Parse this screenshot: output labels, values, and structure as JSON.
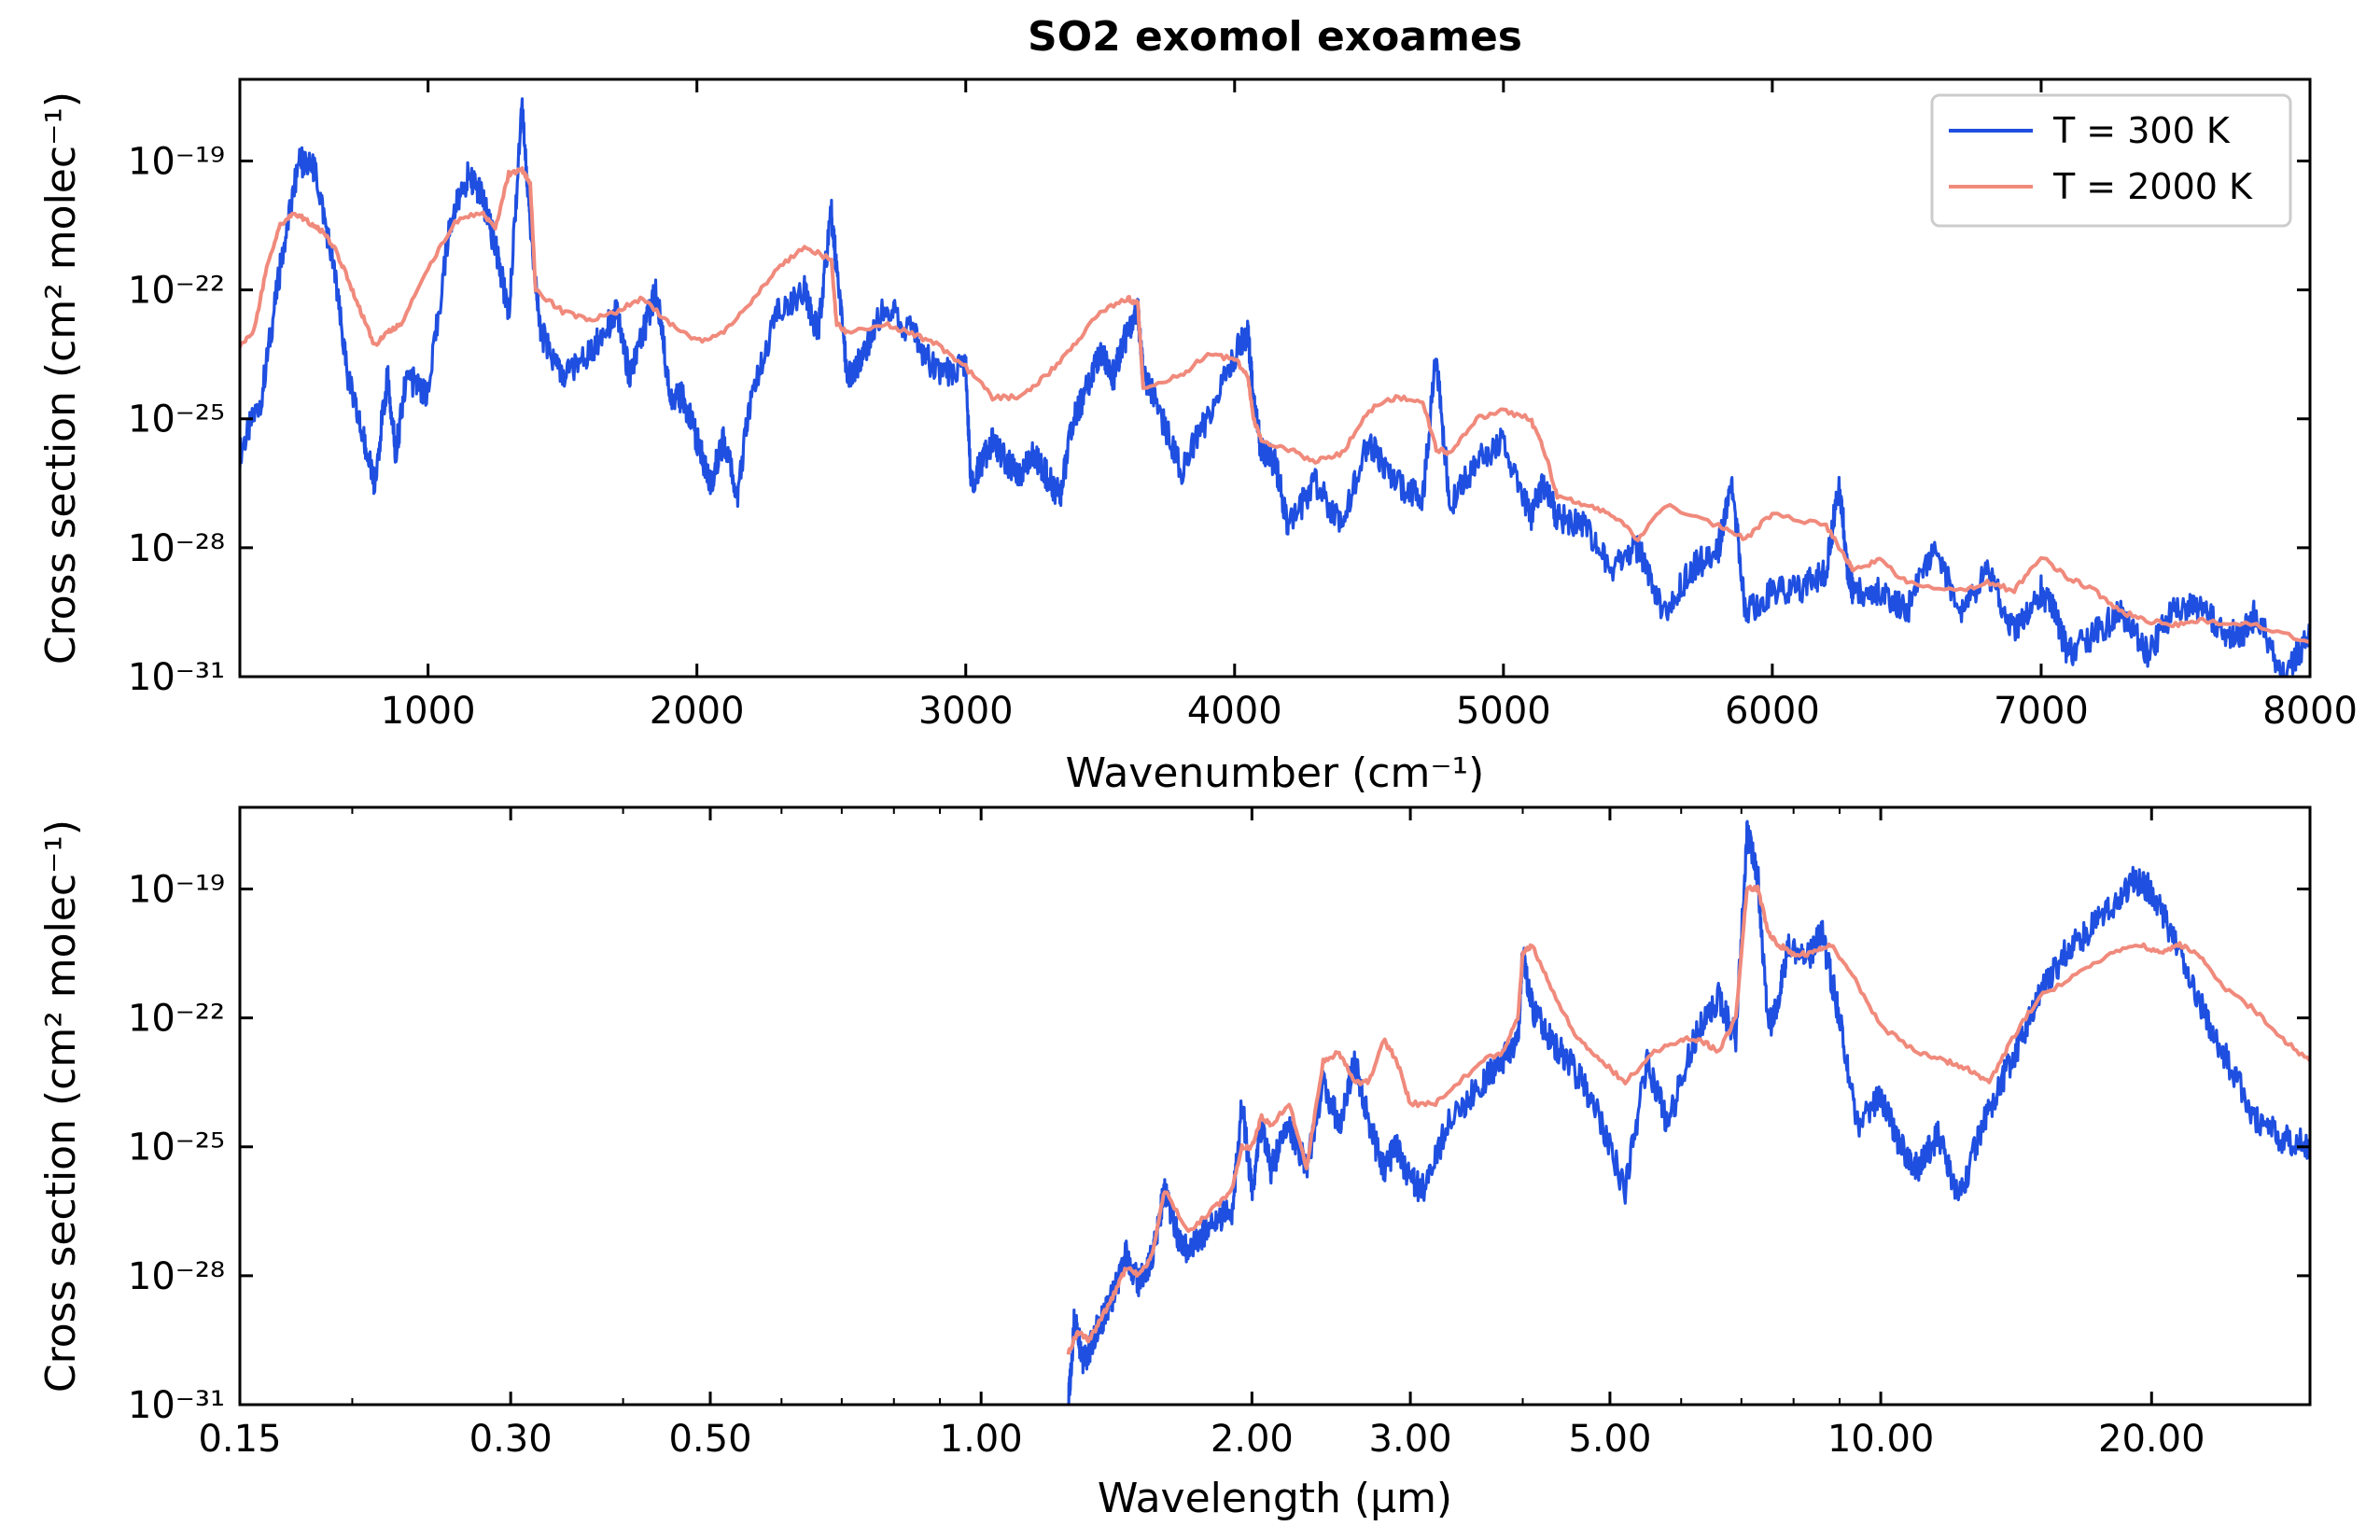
{
  "figure": {
    "title": "SO2 exomol exoames"
  },
  "legend": {
    "entries": [
      "T = 300 K",
      "T = 2000 K"
    ]
  },
  "colors": {
    "t300": "#1f4fe0",
    "t2000": "#f08a7c",
    "axes": "#000000",
    "background": "#ffffff"
  },
  "chart_data": [
    {
      "type": "line",
      "panel": "top",
      "title": "SO2 exomol exoames",
      "xlabel": "Wavenumber (cm⁻¹)",
      "ylabel": "Cross section (cm² molec⁻¹)",
      "xlim": [
        300,
        8000
      ],
      "ylim": [
        -31,
        -17.1
      ],
      "yscale": "log10",
      "x_ticks": [
        1000,
        2000,
        3000,
        4000,
        5000,
        6000,
        7000,
        8000
      ],
      "x_tick_labels": [
        "1000",
        "2000",
        "3000",
        "4000",
        "5000",
        "6000",
        "7000",
        "8000"
      ],
      "y_ticks": [
        -19,
        -22,
        -25,
        -28,
        -31
      ],
      "y_tick_labels": [
        "10⁻¹⁹",
        "10⁻²²",
        "10⁻²⁵",
        "10⁻²⁸",
        "10⁻³¹"
      ],
      "legend": "top-right",
      "grid": false,
      "series": [
        {
          "name": "T = 300 K",
          "color": "#1f4fe0",
          "x": [
            300,
            380,
            450,
            520,
            580,
            650,
            700,
            760,
            800,
            850,
            880,
            920,
            1000,
            1080,
            1150,
            1200,
            1250,
            1300,
            1350,
            1380,
            1420,
            1500,
            1600,
            1700,
            1750,
            1800,
            1850,
            1900,
            1950,
            2000,
            2050,
            2100,
            2150,
            2200,
            2300,
            2400,
            2450,
            2500,
            2520,
            2560,
            2620,
            2700,
            2800,
            2900,
            3000,
            3020,
            3060,
            3100,
            3150,
            3200,
            3250,
            3300,
            3350,
            3400,
            3450,
            3500,
            3550,
            3600,
            3640,
            3660,
            3700,
            3800,
            3900,
            4000,
            4050,
            4070,
            4100,
            4150,
            4200,
            4300,
            4400,
            4500,
            4600,
            4700,
            4750,
            4800,
            4900,
            5000,
            5100,
            5150,
            5200,
            5300,
            5400,
            5500,
            5600,
            5700,
            5800,
            5850,
            5900,
            6000,
            6100,
            6200,
            6250,
            6280,
            6300,
            6400,
            6500,
            6600,
            6700,
            6800,
            6900,
            7000,
            7050,
            7100,
            7200,
            7300,
            7400,
            7500,
            7600,
            7700,
            7750,
            7800,
            7900,
            8000
          ],
          "y": [
            -25.8,
            -24.5,
            -21.5,
            -19.0,
            -19.2,
            -21.5,
            -24.0,
            -25.5,
            -26.5,
            -24.0,
            -25.8,
            -24.0,
            -24.5,
            -20.5,
            -19.3,
            -19.8,
            -21.0,
            -22.5,
            -17.7,
            -20.5,
            -23.0,
            -24.0,
            -23.5,
            -22.5,
            -24.0,
            -23.0,
            -22.0,
            -24.5,
            -24.5,
            -25.5,
            -26.5,
            -25.5,
            -26.8,
            -24.5,
            -22.5,
            -22.0,
            -23.0,
            -20.2,
            -21.5,
            -24.0,
            -23.5,
            -22.3,
            -23.0,
            -24.0,
            -23.8,
            -26.5,
            -26.0,
            -25.5,
            -26.0,
            -26.3,
            -25.8,
            -26.3,
            -26.8,
            -25.0,
            -24.3,
            -23.5,
            -24.0,
            -23.0,
            -22.5,
            -24.0,
            -24.5,
            -26.2,
            -25.0,
            -23.5,
            -23.0,
            -24.5,
            -25.8,
            -26.0,
            -27.5,
            -26.5,
            -27.5,
            -25.5,
            -26.5,
            -26.8,
            -23.5,
            -27.0,
            -26.0,
            -25.5,
            -27.3,
            -26.5,
            -27.3,
            -27.5,
            -28.5,
            -28.0,
            -29.5,
            -28.5,
            -28.0,
            -26.5,
            -29.5,
            -29.0,
            -29.0,
            -28.5,
            -26.5,
            -28.5,
            -29.0,
            -29.0,
            -29.5,
            -28.0,
            -29.5,
            -28.5,
            -30.0,
            -29.0,
            -29.5,
            -30.5,
            -30.0,
            -29.5,
            -30.5,
            -29.3,
            -29.5,
            -30.0,
            -30.0,
            -29.5,
            -31.0,
            -30.0
          ]
        },
        {
          "name": "T = 2000 K",
          "color": "#f08a7c",
          "x": [
            300,
            350,
            400,
            450,
            500,
            550,
            600,
            650,
            700,
            750,
            800,
            850,
            900,
            1000,
            1100,
            1200,
            1250,
            1300,
            1350,
            1380,
            1400,
            1500,
            1600,
            1700,
            1800,
            1900,
            2000,
            2100,
            2200,
            2300,
            2400,
            2500,
            2520,
            2560,
            2700,
            2800,
            2900,
            3000,
            3100,
            3200,
            3300,
            3400,
            3500,
            3600,
            3640,
            3660,
            3800,
            3900,
            4000,
            4050,
            4070,
            4100,
            4200,
            4300,
            4400,
            4500,
            4600,
            4700,
            4750,
            4800,
            4900,
            5000,
            5100,
            5150,
            5200,
            5300,
            5400,
            5500,
            5600,
            5800,
            5900,
            6000,
            6200,
            6280,
            6300,
            6400,
            6500,
            6700,
            6800,
            6900,
            7000,
            7100,
            7200,
            7300,
            7400,
            7500,
            7600,
            7800,
            8000
          ],
          "y": [
            -23.3,
            -23.0,
            -21.5,
            -20.5,
            -20.2,
            -20.4,
            -20.6,
            -21.0,
            -21.7,
            -22.5,
            -23.3,
            -23.0,
            -22.8,
            -21.5,
            -20.4,
            -20.2,
            -20.6,
            -19.3,
            -19.2,
            -19.5,
            -22.0,
            -22.5,
            -22.7,
            -22.5,
            -22.2,
            -22.8,
            -23.2,
            -23.0,
            -22.3,
            -21.5,
            -21.0,
            -21.3,
            -22.8,
            -23.0,
            -22.8,
            -23.0,
            -23.3,
            -23.8,
            -24.5,
            -24.5,
            -24.0,
            -23.3,
            -22.5,
            -22.2,
            -22.3,
            -24.3,
            -24.0,
            -23.5,
            -23.6,
            -24.0,
            -25.0,
            -25.5,
            -25.7,
            -26.0,
            -25.8,
            -24.8,
            -24.5,
            -24.6,
            -25.7,
            -25.8,
            -25.0,
            -24.8,
            -25.0,
            -25.7,
            -26.8,
            -27.0,
            -27.2,
            -27.8,
            -27.0,
            -27.5,
            -27.8,
            -27.2,
            -27.5,
            -28.3,
            -28.5,
            -28.3,
            -28.8,
            -29.0,
            -28.8,
            -29.0,
            -28.2,
            -28.7,
            -29.0,
            -29.5,
            -29.7,
            -29.8,
            -29.7,
            -29.8,
            -30.2
          ]
        }
      ]
    },
    {
      "type": "line",
      "panel": "bottom",
      "xlabel": "Wavelength (μm)",
      "ylabel": "Cross section (cm² molec⁻¹)",
      "xlim": [
        0.15,
        30
      ],
      "xscale": "log10",
      "ylim": [
        -31,
        -17.1
      ],
      "yscale": "log10",
      "x_ticks": [
        0.15,
        0.3,
        0.5,
        1.0,
        2.0,
        3.0,
        5.0,
        10.0,
        20.0
      ],
      "x_tick_labels": [
        "0.15",
        "0.30",
        "0.50",
        "1.00",
        "2.00",
        "3.00",
        "5.00",
        "10.00",
        "20.00"
      ],
      "y_ticks": [
        -19,
        -22,
        -25,
        -28,
        -31
      ],
      "y_tick_labels": [
        "10⁻¹⁹",
        "10⁻²²",
        "10⁻²⁵",
        "10⁻²⁸",
        "10⁻³¹"
      ],
      "grid": false,
      "series": [
        {
          "name": "T = 300 K",
          "color": "#1f4fe0",
          "x": [
            1.25,
            1.27,
            1.3,
            1.35,
            1.4,
            1.45,
            1.5,
            1.55,
            1.6,
            1.65,
            1.7,
            1.8,
            1.9,
            1.95,
            2.0,
            2.05,
            2.1,
            2.2,
            2.3,
            2.4,
            2.5,
            2.6,
            2.7,
            2.8,
            2.9,
            3.0,
            3.1,
            3.3,
            3.6,
            3.8,
            3.95,
            4.0,
            4.1,
            4.3,
            4.5,
            4.8,
            5.2,
            5.5,
            5.8,
            6.2,
            6.6,
            6.9,
            7.1,
            7.3,
            7.5,
            7.7,
            7.9,
            8.3,
            8.6,
            9.0,
            9.4,
            10.0,
            10.5,
            11.0,
            11.6,
            12.2,
            13.0,
            13.6,
            14.3,
            15.0,
            16.0,
            17.0,
            18.0,
            19.0,
            20.0,
            21.0,
            22.5,
            24.0,
            26.0,
            28.0,
            30.0
          ],
          "y": [
            -31,
            -29.0,
            -30.0,
            -29.2,
            -28.5,
            -27.5,
            -28.2,
            -27.5,
            -26.0,
            -27.0,
            -27.5,
            -26.8,
            -26.5,
            -24.0,
            -26.0,
            -24.5,
            -25.5,
            -24.5,
            -25.5,
            -23.5,
            -24.5,
            -23.0,
            -24.5,
            -25.5,
            -25.0,
            -25.8,
            -26.0,
            -24.5,
            -23.5,
            -23.0,
            -22.5,
            -20.5,
            -21.8,
            -22.5,
            -23.0,
            -24.0,
            -26.0,
            -23.0,
            -24.5,
            -22.5,
            -21.5,
            -22.5,
            -17.7,
            -18.7,
            -22.3,
            -21.5,
            -20.3,
            -20.6,
            -20.0,
            -22.0,
            -24.5,
            -23.8,
            -25.0,
            -25.5,
            -24.7,
            -26.2,
            -24.5,
            -23.5,
            -22.5,
            -21.5,
            -20.5,
            -20.0,
            -19.5,
            -18.8,
            -19.0,
            -20.0,
            -21.5,
            -22.8,
            -24.3,
            -24.8,
            -25.0
          ]
        },
        {
          "name": "T = 2000 K",
          "color": "#f08a7c",
          "x": [
            1.25,
            1.28,
            1.32,
            1.36,
            1.4,
            1.45,
            1.5,
            1.55,
            1.6,
            1.7,
            1.8,
            1.9,
            1.95,
            2.0,
            2.05,
            2.1,
            2.2,
            2.3,
            2.4,
            2.5,
            2.6,
            2.7,
            2.8,
            2.9,
            3.0,
            3.2,
            3.4,
            3.6,
            3.8,
            3.95,
            4.0,
            4.1,
            4.3,
            4.6,
            4.9,
            5.2,
            5.6,
            6.0,
            6.3,
            6.6,
            6.9,
            7.1,
            7.3,
            7.5,
            7.7,
            8.0,
            8.4,
            8.8,
            9.3,
            10.0,
            11.0,
            11.8,
            12.5,
            13.2,
            14.0,
            15.0,
            16.5,
            18.0,
            19.5,
            20.5,
            21.5,
            22.5,
            24.0,
            26.0,
            28.0,
            30.0
          ],
          "y": [
            -29.8,
            -29.3,
            -29.5,
            -29.0,
            -28.5,
            -27.8,
            -28.0,
            -27.5,
            -26.0,
            -27.0,
            -26.5,
            -26.0,
            -25.0,
            -25.0,
            -24.3,
            -24.5,
            -24.0,
            -25.5,
            -23.0,
            -22.8,
            -23.5,
            -23.5,
            -22.5,
            -23.0,
            -24.0,
            -24.0,
            -23.5,
            -23.0,
            -22.8,
            -22.0,
            -20.5,
            -20.3,
            -21.3,
            -22.5,
            -23.0,
            -23.5,
            -22.8,
            -22.5,
            -22.5,
            -22.8,
            -22.0,
            -19.0,
            -19.0,
            -20.0,
            -20.3,
            -20.5,
            -20.5,
            -20.3,
            -21.0,
            -22.2,
            -22.8,
            -23.0,
            -23.2,
            -23.5,
            -22.5,
            -21.5,
            -21.0,
            -20.5,
            -20.3,
            -20.5,
            -20.3,
            -20.5,
            -21.3,
            -21.8,
            -22.5,
            -23.0
          ]
        }
      ]
    }
  ]
}
